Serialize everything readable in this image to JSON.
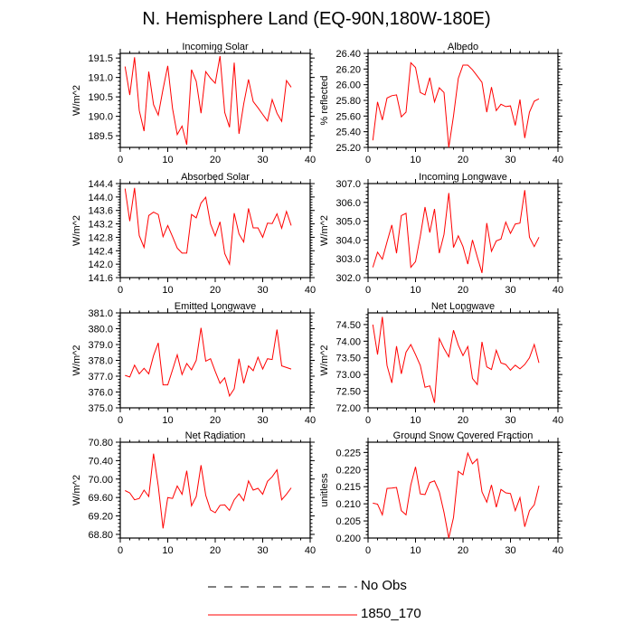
{
  "chart_data": {
    "type": "line",
    "title": "N. Hemisphere Land (EQ-90N,180W-180E)",
    "legend": {
      "placement": "bottom",
      "entries": [
        {
          "label": "No Obs",
          "style": "dashed",
          "color": "#000000"
        },
        {
          "label": "1850_170",
          "style": "solid",
          "color": "#ff0000"
        }
      ]
    },
    "series_color": "#ff0000",
    "xlim": [
      0,
      40
    ],
    "xticks": [
      0,
      10,
      20,
      30,
      40
    ],
    "panels": [
      {
        "title": "Incoming Solar",
        "ylabel": "W/m^2",
        "ylim": [
          189.2,
          191.62
        ],
        "yticks": [
          "189.5",
          "190.0",
          "190.5",
          "191.0",
          "191.5"
        ],
        "values": [
          191.28,
          190.55,
          191.52,
          190.15,
          189.62,
          191.15,
          190.3,
          190.03,
          190.7,
          191.3,
          190.2,
          189.53,
          189.75,
          189.27,
          191.2,
          190.9,
          190.08,
          191.15,
          190.98,
          190.85,
          191.55,
          190.1,
          189.72,
          191.38,
          189.55,
          190.32,
          190.95,
          190.38,
          190.22,
          190.05,
          189.88,
          190.43,
          190.08,
          189.87,
          190.92,
          190.75
        ]
      },
      {
        "title": "Albedo",
        "ylabel": "% reflected",
        "ylim": [
          25.2,
          26.4
        ],
        "yticks": [
          "25.20",
          "25.40",
          "25.60",
          "25.80",
          "26.00",
          "26.20",
          "26.40"
        ],
        "values": [
          25.29,
          25.78,
          25.55,
          25.83,
          25.86,
          25.87,
          25.59,
          25.65,
          26.28,
          26.22,
          25.9,
          25.87,
          26.09,
          25.78,
          25.96,
          25.9,
          25.2,
          25.6,
          26.08,
          26.25,
          26.25,
          26.19,
          26.11,
          26.03,
          25.65,
          25.97,
          25.67,
          25.75,
          25.72,
          25.73,
          25.48,
          25.81,
          25.32,
          25.65,
          25.79,
          25.82
        ]
      },
      {
        "title": "Absorbed Solar",
        "ylabel": "W/m^2",
        "ylim": [
          141.6,
          144.4
        ],
        "yticks": [
          "141.6",
          "142.0",
          "142.4",
          "142.8",
          "143.2",
          "143.6",
          "144.0",
          "144.4"
        ],
        "values": [
          144.25,
          143.28,
          144.27,
          142.85,
          142.5,
          143.45,
          143.55,
          143.48,
          142.82,
          143.15,
          142.82,
          142.48,
          142.33,
          142.33,
          143.48,
          143.38,
          143.82,
          143.99,
          143.2,
          142.84,
          143.26,
          142.32,
          142.0,
          143.52,
          142.9,
          142.66,
          143.66,
          143.08,
          143.08,
          142.8,
          143.22,
          143.21,
          143.5,
          143.07,
          143.57,
          143.15
        ]
      },
      {
        "title": "Incoming Longwave",
        "ylabel": "W/m^2",
        "ylim": [
          302.0,
          307.0
        ],
        "yticks": [
          "302.0",
          "303.0",
          "304.0",
          "305.0",
          "306.0",
          "307.0"
        ],
        "values": [
          302.55,
          303.35,
          302.98,
          303.9,
          304.8,
          303.3,
          305.3,
          305.42,
          302.55,
          302.85,
          304.2,
          305.75,
          304.4,
          305.65,
          303.3,
          304.3,
          306.5,
          303.6,
          304.22,
          303.65,
          302.72,
          304.0,
          303.1,
          302.25,
          304.9,
          303.4,
          303.95,
          304.05,
          304.95,
          304.35,
          304.85,
          304.9,
          306.65,
          304.15,
          303.65,
          304.15
        ]
      },
      {
        "title": "Emitted Longwave",
        "ylabel": "W/m^2",
        "ylim": [
          375.0,
          381.0
        ],
        "yticks": [
          "375.0",
          "376.0",
          "377.0",
          "378.0",
          "379.0",
          "380.0",
          "381.0"
        ],
        "values": [
          377.05,
          376.95,
          377.7,
          377.15,
          377.5,
          377.15,
          378.3,
          379.1,
          376.45,
          376.45,
          377.4,
          378.35,
          377.1,
          377.8,
          377.4,
          378.0,
          380.05,
          377.95,
          378.1,
          377.3,
          376.55,
          376.9,
          375.75,
          376.2,
          378.1,
          376.55,
          377.65,
          377.35,
          378.2,
          377.45,
          378.1,
          378.05,
          379.95,
          377.65,
          377.55,
          377.45
        ]
      },
      {
        "title": "Net Longwave",
        "ylabel": "W/m^2",
        "ylim": [
          72.0,
          74.85
        ],
        "yticks": [
          "72.00",
          "72.50",
          "73.00",
          "73.50",
          "74.00",
          "74.50"
        ],
        "values": [
          74.5,
          73.6,
          74.73,
          73.27,
          72.75,
          73.85,
          73.02,
          73.67,
          73.9,
          73.6,
          73.27,
          72.62,
          72.66,
          72.15,
          74.08,
          73.78,
          73.53,
          74.33,
          73.88,
          73.57,
          73.84,
          72.88,
          72.7,
          73.98,
          73.23,
          73.15,
          73.73,
          73.35,
          73.3,
          73.13,
          73.28,
          73.17,
          73.3,
          73.5,
          73.9,
          73.35
        ]
      },
      {
        "title": "Net Radiation",
        "ylabel": "W/m^2",
        "ylim": [
          68.72,
          70.8
        ],
        "yticks": [
          "68.80",
          "69.20",
          "69.60",
          "70.00",
          "70.40",
          "70.80"
        ],
        "values": [
          69.75,
          69.7,
          69.55,
          69.58,
          69.76,
          69.62,
          70.55,
          69.85,
          68.93,
          69.6,
          69.58,
          69.85,
          69.67,
          70.18,
          69.42,
          69.62,
          70.3,
          69.65,
          69.33,
          69.27,
          69.43,
          69.44,
          69.32,
          69.55,
          69.68,
          69.53,
          69.96,
          69.76,
          69.8,
          69.67,
          69.95,
          70.05,
          70.2,
          69.55,
          69.67,
          69.81
        ]
      },
      {
        "title": "Ground Snow Covered Fraction",
        "ylabel": "unitless",
        "ylim": [
          0.2,
          0.228
        ],
        "yticks": [
          "0.200",
          "0.205",
          "0.210",
          "0.215",
          "0.220",
          "0.225"
        ],
        "values": [
          0.2102,
          0.2099,
          0.2068,
          0.2145,
          0.2146,
          0.2148,
          0.208,
          0.2068,
          0.2155,
          0.2208,
          0.2129,
          0.2127,
          0.2162,
          0.2167,
          0.2135,
          0.2075,
          0.2,
          0.206,
          0.2195,
          0.2185,
          0.2248,
          0.2217,
          0.2231,
          0.2135,
          0.2105,
          0.2155,
          0.209,
          0.2142,
          0.2132,
          0.213,
          0.208,
          0.2118,
          0.2033,
          0.208,
          0.2097,
          0.2153
        ]
      }
    ]
  }
}
